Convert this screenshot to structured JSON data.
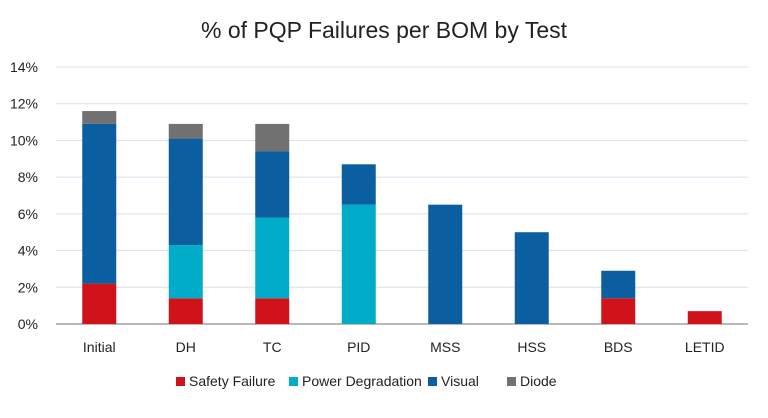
{
  "chart_data": {
    "type": "bar",
    "stacked": true,
    "title": "% of PQP Failures per BOM by Test",
    "xlabel": "",
    "ylabel": "",
    "ylim": [
      0,
      14
    ],
    "yticks": [
      "0%",
      "2%",
      "4%",
      "6%",
      "8%",
      "10%",
      "12%",
      "14%"
    ],
    "grid": true,
    "legend_position": "bottom",
    "categories": [
      "Initial",
      "DH",
      "TC",
      "PID",
      "MSS",
      "HSS",
      "BDS",
      "LETID"
    ],
    "series": [
      {
        "name": "Safety Failure",
        "color": "#D0121B",
        "values": [
          2.2,
          1.4,
          1.4,
          0,
          0,
          0,
          1.4,
          0.7
        ]
      },
      {
        "name": "Power Degradation",
        "color": "#00ACC8",
        "values": [
          0,
          2.9,
          4.4,
          6.5,
          0,
          0,
          0,
          0
        ]
      },
      {
        "name": "Visual",
        "color": "#0B5EA0",
        "values": [
          8.7,
          5.8,
          3.6,
          2.2,
          6.5,
          5.0,
          1.5,
          0
        ]
      },
      {
        "name": "Diode",
        "color": "#717171",
        "values": [
          0.7,
          0.8,
          1.5,
          0,
          0,
          0,
          0,
          0
        ]
      }
    ]
  }
}
